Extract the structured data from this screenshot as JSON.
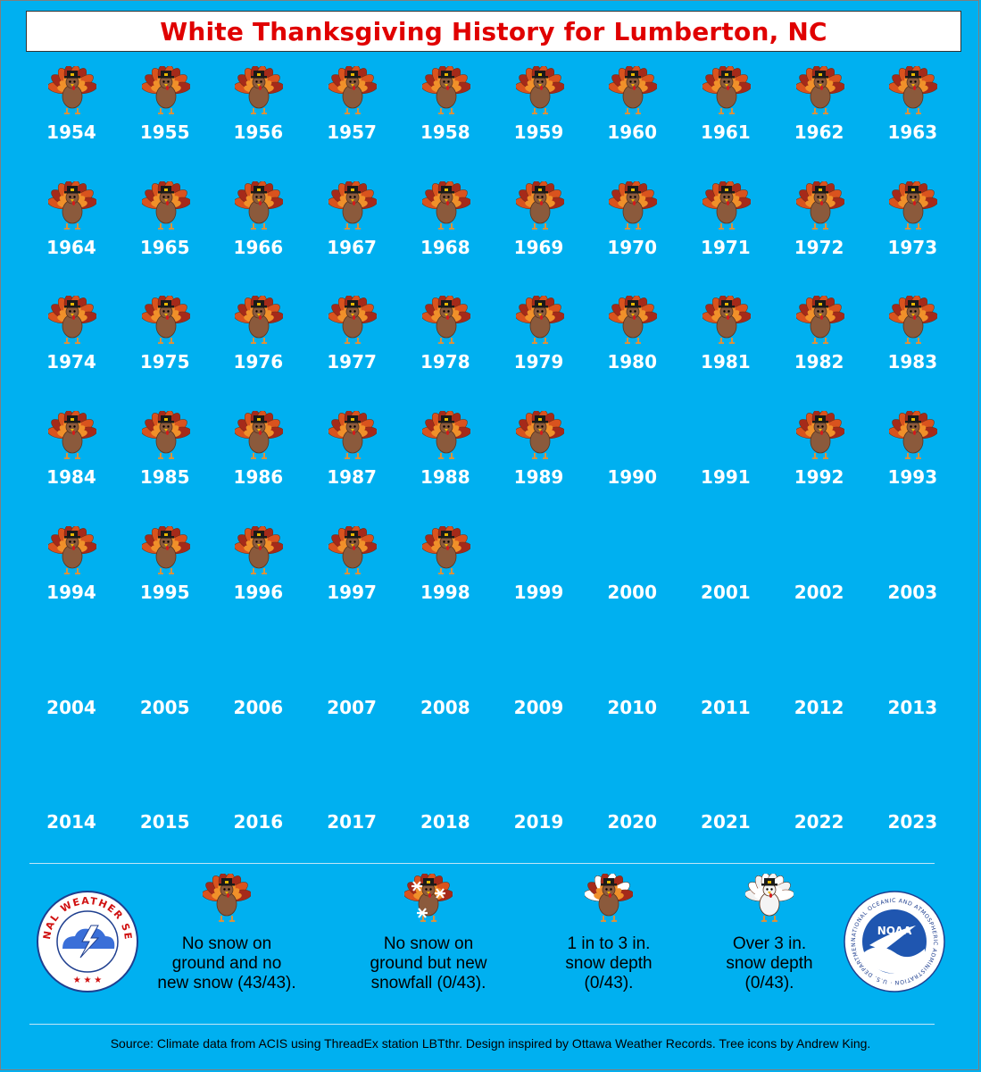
{
  "title": "White Thanksgiving History for Lumberton, NC",
  "chart_data": {
    "type": "table",
    "title": "White Thanksgiving History for Lumberton, NC",
    "columns": 10,
    "years": [
      {
        "year": "1954",
        "category": "no_snow"
      },
      {
        "year": "1955",
        "category": "no_snow"
      },
      {
        "year": "1956",
        "category": "no_snow"
      },
      {
        "year": "1957",
        "category": "no_snow"
      },
      {
        "year": "1958",
        "category": "no_snow"
      },
      {
        "year": "1959",
        "category": "no_snow"
      },
      {
        "year": "1960",
        "category": "no_snow"
      },
      {
        "year": "1961",
        "category": "no_snow"
      },
      {
        "year": "1962",
        "category": "no_snow"
      },
      {
        "year": "1963",
        "category": "no_snow"
      },
      {
        "year": "1964",
        "category": "no_snow"
      },
      {
        "year": "1965",
        "category": "no_snow"
      },
      {
        "year": "1966",
        "category": "no_snow"
      },
      {
        "year": "1967",
        "category": "no_snow"
      },
      {
        "year": "1968",
        "category": "no_snow"
      },
      {
        "year": "1969",
        "category": "no_snow"
      },
      {
        "year": "1970",
        "category": "no_snow"
      },
      {
        "year": "1971",
        "category": "no_snow"
      },
      {
        "year": "1972",
        "category": "no_snow"
      },
      {
        "year": "1973",
        "category": "no_snow"
      },
      {
        "year": "1974",
        "category": "no_snow"
      },
      {
        "year": "1975",
        "category": "no_snow"
      },
      {
        "year": "1976",
        "category": "no_snow"
      },
      {
        "year": "1977",
        "category": "no_snow"
      },
      {
        "year": "1978",
        "category": "no_snow"
      },
      {
        "year": "1979",
        "category": "no_snow"
      },
      {
        "year": "1980",
        "category": "no_snow"
      },
      {
        "year": "1981",
        "category": "no_snow"
      },
      {
        "year": "1982",
        "category": "no_snow"
      },
      {
        "year": "1983",
        "category": "no_snow"
      },
      {
        "year": "1984",
        "category": "no_snow"
      },
      {
        "year": "1985",
        "category": "no_snow"
      },
      {
        "year": "1986",
        "category": "no_snow"
      },
      {
        "year": "1987",
        "category": "no_snow"
      },
      {
        "year": "1988",
        "category": "no_snow"
      },
      {
        "year": "1989",
        "category": "no_snow"
      },
      {
        "year": "1990",
        "category": "none"
      },
      {
        "year": "1991",
        "category": "none"
      },
      {
        "year": "1992",
        "category": "no_snow"
      },
      {
        "year": "1993",
        "category": "no_snow"
      },
      {
        "year": "1994",
        "category": "no_snow"
      },
      {
        "year": "1995",
        "category": "no_snow"
      },
      {
        "year": "1996",
        "category": "no_snow"
      },
      {
        "year": "1997",
        "category": "no_snow"
      },
      {
        "year": "1998",
        "category": "no_snow"
      },
      {
        "year": "1999",
        "category": "none"
      },
      {
        "year": "2000",
        "category": "none"
      },
      {
        "year": "2001",
        "category": "none"
      },
      {
        "year": "2002",
        "category": "none"
      },
      {
        "year": "2003",
        "category": "none"
      },
      {
        "year": "2004",
        "category": "none"
      },
      {
        "year": "2005",
        "category": "none"
      },
      {
        "year": "2006",
        "category": "none"
      },
      {
        "year": "2007",
        "category": "none"
      },
      {
        "year": "2008",
        "category": "none"
      },
      {
        "year": "2009",
        "category": "none"
      },
      {
        "year": "2010",
        "category": "none"
      },
      {
        "year": "2011",
        "category": "none"
      },
      {
        "year": "2012",
        "category": "none"
      },
      {
        "year": "2013",
        "category": "none"
      },
      {
        "year": "2014",
        "category": "none"
      },
      {
        "year": "2015",
        "category": "none"
      },
      {
        "year": "2016",
        "category": "none"
      },
      {
        "year": "2017",
        "category": "none"
      },
      {
        "year": "2018",
        "category": "none"
      },
      {
        "year": "2019",
        "category": "none"
      },
      {
        "year": "2020",
        "category": "none"
      },
      {
        "year": "2021",
        "category": "none"
      },
      {
        "year": "2022",
        "category": "none"
      },
      {
        "year": "2023",
        "category": "none"
      }
    ],
    "legend": [
      {
        "category": "no_snow",
        "icon": "brown-turkey-icon",
        "lines": [
          "No snow on",
          "ground and no",
          "new snow (43/43)."
        ]
      },
      {
        "category": "new_snowfall",
        "icon": "turkey-snowflake-icon",
        "lines": [
          "No snow on",
          "ground but new",
          "snowfall (0/43)."
        ]
      },
      {
        "category": "depth_1_3",
        "icon": "partly-white-turkey-icon",
        "lines": [
          "1 in to 3 in.",
          "snow depth",
          "(0/43)."
        ]
      },
      {
        "category": "depth_over_3",
        "icon": "white-turkey-icon",
        "lines": [
          "Over 3 in.",
          "snow depth",
          "(0/43)."
        ]
      }
    ]
  },
  "logos": {
    "nws": {
      "text": "NATIONAL WEATHER SERVICE"
    },
    "noaa": {
      "text": "NOAA",
      "ring_text": "NATIONAL OCEANIC AND ATMOSPHERIC ADMINISTRATION · U.S. DEPARTMENT OF COMMERCE"
    }
  },
  "source": "Source: Climate data from ACIS using ThreadEx station LBTthr. Design inspired by Ottawa Weather Records. Tree icons by Andrew King.",
  "colors": {
    "background": "#00b0f0",
    "title": "#e00000",
    "year_text": "#ffffff",
    "turkey_body": "#8b5a3c",
    "feather_red": "#c0392b",
    "feather_orange": "#e67e22",
    "hat": "#1a1a1a"
  }
}
